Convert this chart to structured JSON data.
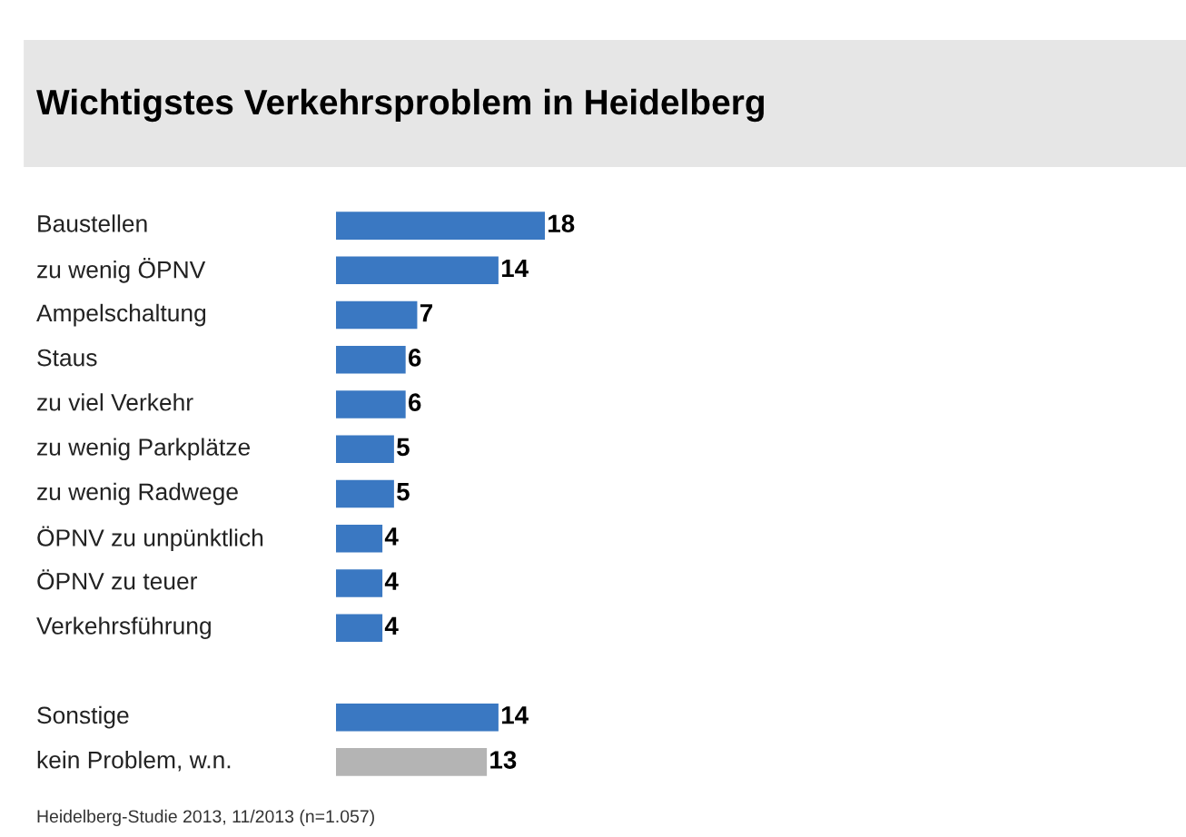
{
  "chart_data": {
    "type": "bar",
    "orientation": "horizontal",
    "title": "Wichtigstes Verkehrsproblem in Heidelberg",
    "categories": [
      "Baustellen",
      "zu wenig ÖPNV",
      "Ampelschaltung",
      "Staus",
      "zu viel Verkehr",
      "zu wenig Parkplätze",
      "zu wenig Radwege",
      "ÖPNV zu unpünktlich",
      "ÖPNV zu teuer",
      "Verkehrsführung",
      null,
      "Sonstige",
      "kein Problem, w.n."
    ],
    "values": [
      18,
      14,
      7,
      6,
      6,
      5,
      5,
      4,
      4,
      4,
      null,
      14,
      13
    ],
    "colors": [
      "#3a78c2",
      "#3a78c2",
      "#3a78c2",
      "#3a78c2",
      "#3a78c2",
      "#3a78c2",
      "#3a78c2",
      "#3a78c2",
      "#3a78c2",
      "#3a78c2",
      null,
      "#3a78c2",
      "#b4b4b4"
    ],
    "data_labels": true,
    "annotations": [
      "Heidelberg-Studie 2013, 11/2013 (n=1.057)"
    ]
  }
}
